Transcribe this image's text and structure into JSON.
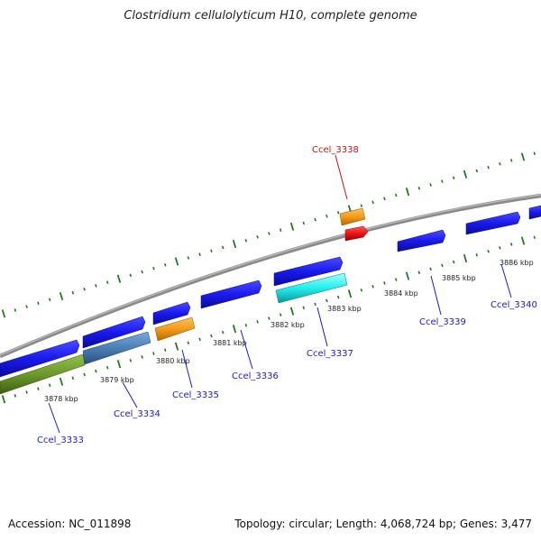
{
  "title": "Clostridium cellulolyticum H10, complete genome",
  "footer": {
    "accession": "Accession: NC_011898",
    "topology": "Topology: circular; Length: 4,068,724 bp; Genes: 3,477"
  },
  "kbp_labels": [
    "3878 kbp",
    "3879 kbp",
    "3880 kbp",
    "3881 kbp",
    "3882 kbp",
    "3883 kbp",
    "3884 kbp",
    "3885 kbp",
    "3886 kbp"
  ],
  "gene_labels": [
    {
      "name": "Ccel_3333",
      "color": "#1a1acc"
    },
    {
      "name": "Ccel_3334",
      "color": "#1a1acc"
    },
    {
      "name": "Ccel_3335",
      "color": "#1a1acc"
    },
    {
      "name": "Ccel_3336",
      "color": "#1a1acc"
    },
    {
      "name": "Ccel_3337",
      "color": "#1a1acc"
    },
    {
      "name": "Ccel_3338",
      "color": "#cc1111"
    },
    {
      "name": "Ccel_3339",
      "color": "#1a1acc"
    },
    {
      "name": "Ccel_3340",
      "color": "#1a1acc"
    }
  ],
  "colors": {
    "cds_blue": "#1a1aee",
    "orange": "#f59a1a",
    "red": "#ee1111",
    "cyan": "#22eeee",
    "steel": "#4a7fb5",
    "olive": "#6b9a2a",
    "backbone": "#8a8a8a",
    "tick": "#1f7a1f"
  }
}
